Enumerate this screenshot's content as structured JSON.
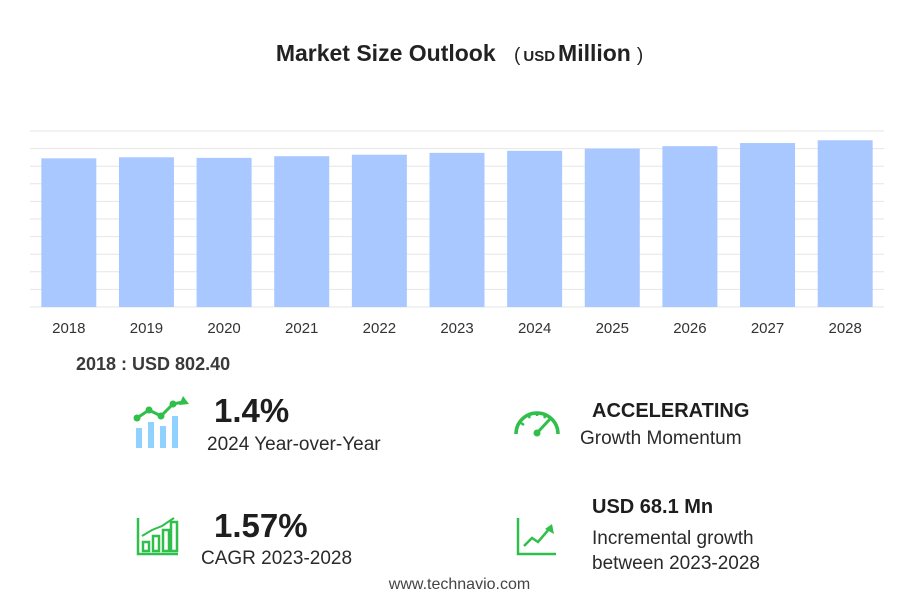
{
  "chart_title": {
    "main": "Market Size Outlook",
    "paren_open": "(",
    "unit_small": "USD",
    "unit_big": "Million",
    "paren_close": ")"
  },
  "chart_data": {
    "type": "bar",
    "categories": [
      "2018",
      "2019",
      "2020",
      "2021",
      "2022",
      "2023",
      "2024",
      "2025",
      "2026",
      "2027",
      "2028"
    ],
    "values": [
      802.4,
      808,
      805,
      814,
      822,
      832,
      843,
      855,
      868,
      885,
      900
    ],
    "ylim": [
      0,
      950
    ],
    "grid": true,
    "bar_color": "#a8c8ff"
  },
  "first_value": "2018 : USD  802.40",
  "stats": {
    "yoy_value": "1.4%",
    "yoy_label": "2024 Year-over-Year",
    "momentum_value": "ACCELERATING",
    "momentum_label": "Growth Momentum",
    "cagr_value": "1.57%",
    "cagr_label": "CAGR 2023-2028",
    "incr_value": "USD 68.1 Mn",
    "incr_label_1": "Incremental growth",
    "incr_label_2": "between 2023-2028"
  },
  "icons": {
    "yoy": "trend-bars-icon",
    "momentum": "speedometer-icon",
    "cagr": "growth-chart-icon",
    "incremental": "line-chart-icon"
  },
  "colors": {
    "accent": "#2fbf4a",
    "accent_light": "#8fd1ff"
  },
  "footer": "www.technavio.com"
}
